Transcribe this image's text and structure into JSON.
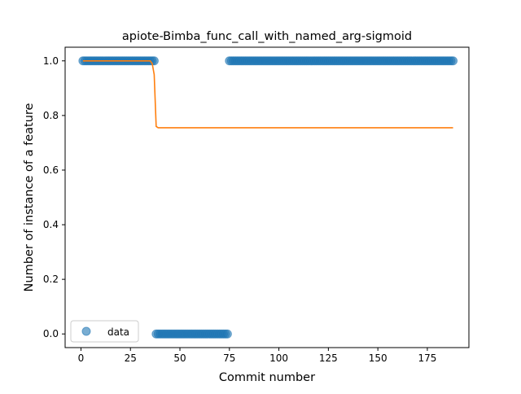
{
  "chart_data": {
    "type": "scatter",
    "title": "apiote-Bimba_func_call_with_named_arg-sigmoid",
    "xlabel": "Commit number",
    "ylabel": "Number of instance of a feature",
    "xlim": [
      -8,
      196
    ],
    "ylim": [
      -0.05,
      1.05
    ],
    "xticks": [
      0,
      25,
      50,
      75,
      100,
      125,
      150,
      175
    ],
    "yticks": [
      0.0,
      0.2,
      0.4,
      0.6,
      0.8,
      1.0
    ],
    "ytick_labels": [
      "0.0",
      "0.2",
      "0.4",
      "0.6",
      "0.8",
      "1.0"
    ],
    "legend": {
      "entries": [
        "data"
      ],
      "position": "lower-left"
    },
    "grid": false,
    "colors": {
      "data": "#1f77b4",
      "fit": "#ff7f0e"
    },
    "data_segments": [
      {
        "x_start": 1,
        "x_end": 37,
        "y": 1.0
      },
      {
        "x_start": 38,
        "x_end": 74,
        "y": 0.0
      },
      {
        "x_start": 75,
        "x_end": 188,
        "y": 1.0
      }
    ],
    "fit_line": {
      "x": [
        1,
        34,
        35,
        36,
        37,
        38,
        39,
        60,
        100,
        150,
        188
      ],
      "y": [
        1.0,
        1.0,
        1.0,
        0.99,
        0.95,
        0.76,
        0.755,
        0.755,
        0.755,
        0.755,
        0.755
      ]
    }
  }
}
